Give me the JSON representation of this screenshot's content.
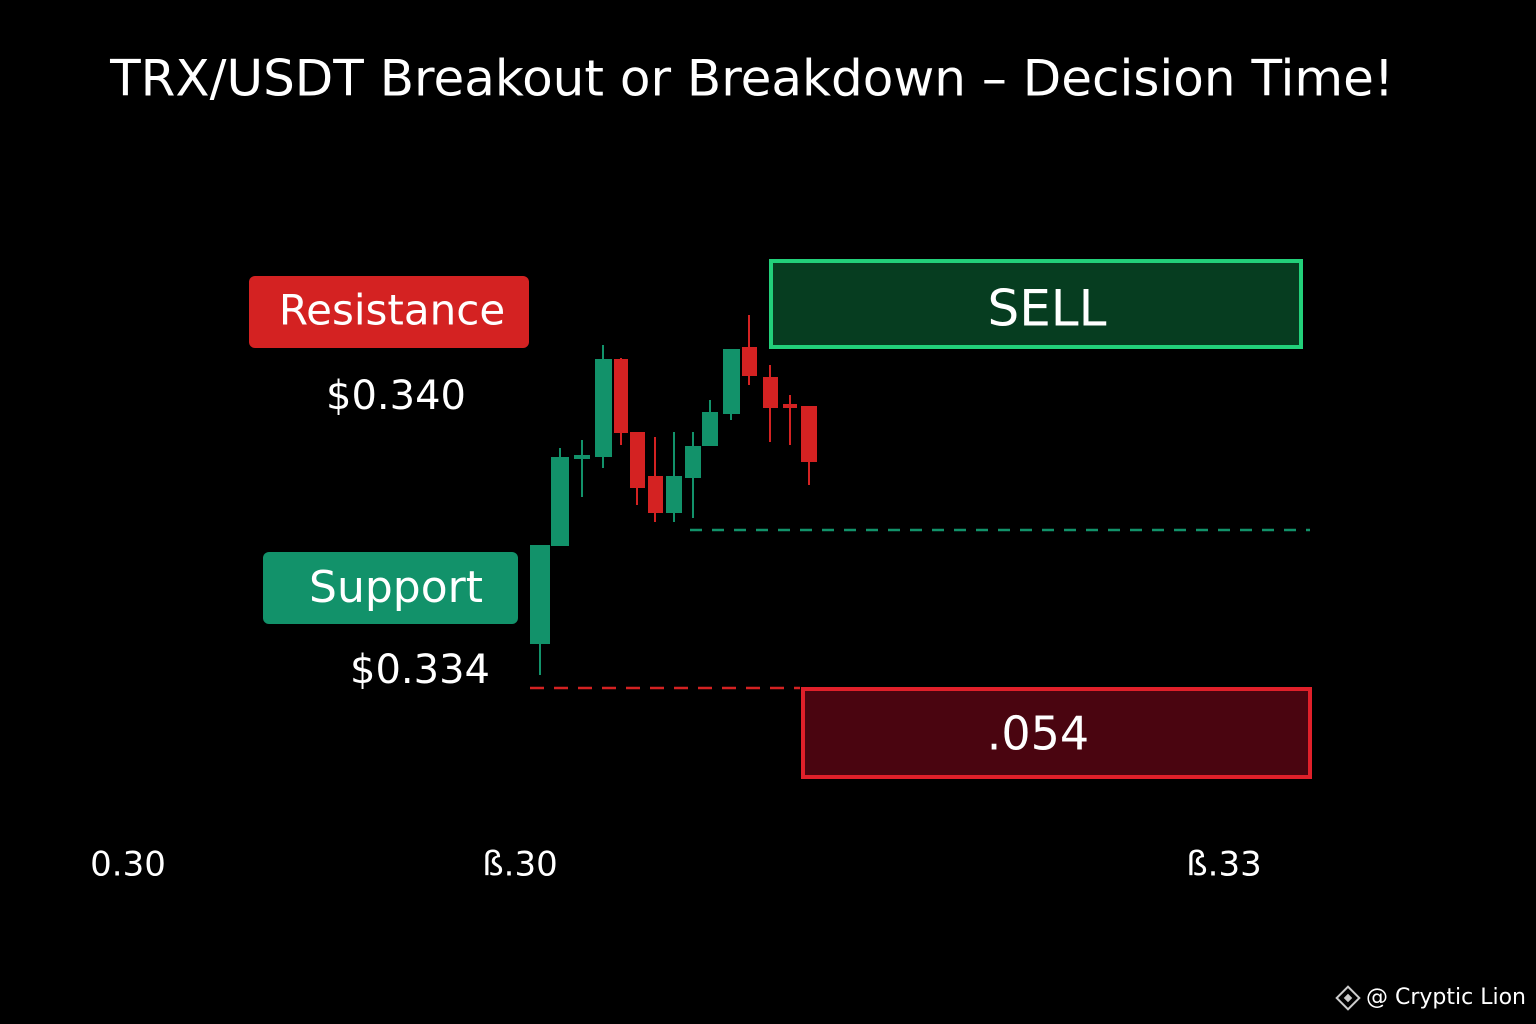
{
  "header": {
    "title": "TRX/USDT Breakout or Breakdown – Decision Time!"
  },
  "resistance": {
    "label": "Resistance",
    "price": "$0.340"
  },
  "support": {
    "label": "Support",
    "price": "$0.334"
  },
  "sell_box": {
    "label": "SELL"
  },
  "red_box": {
    "label": ".054"
  },
  "axis_labels": [
    "0.30",
    "ß.30",
    "ß.33"
  ],
  "watermark": "@ Cryptic Lion"
}
